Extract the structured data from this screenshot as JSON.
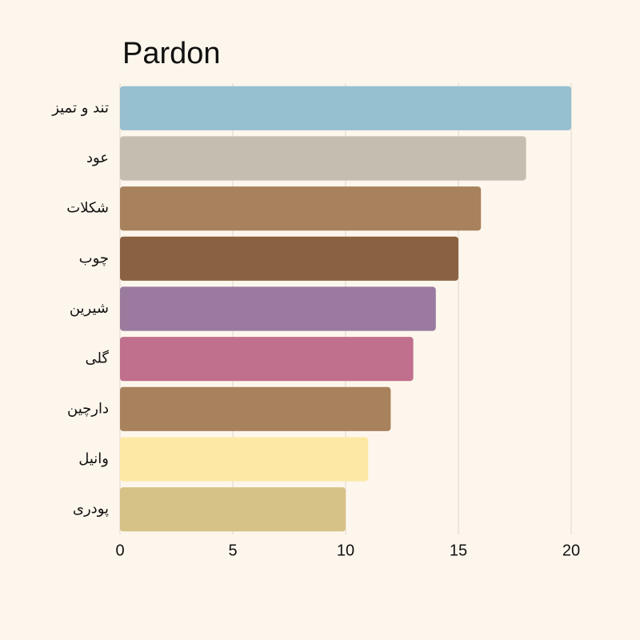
{
  "chart_data": {
    "type": "bar",
    "orientation": "horizontal",
    "title": "Pardon",
    "categories": [
      "تند و تمیز",
      "عود",
      "شکلات",
      "چوب",
      "شیرین",
      "گلی",
      "دارچین",
      "وانیل",
      "پودری"
    ],
    "values": [
      20,
      18,
      16,
      15,
      14,
      13,
      12,
      11,
      10
    ],
    "colors": [
      "#96bfd0",
      "#c5bdb0",
      "#a8825c",
      "#8a6242",
      "#9a7a9f",
      "#c06f8d",
      "#a8825c",
      "#fde9a5",
      "#d6c286"
    ],
    "xlim": [
      0,
      20
    ],
    "xticks": [
      0,
      5,
      10,
      15,
      20
    ],
    "grid": true
  }
}
